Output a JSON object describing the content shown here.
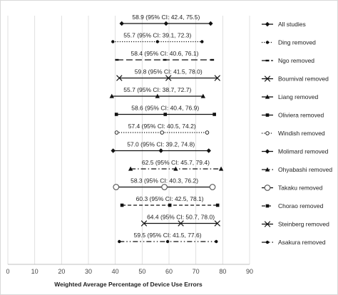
{
  "chart_data": {
    "type": "forest",
    "xlabel": "Weighted Average Percentage of Device Use Errors",
    "xlim": [
      0,
      90
    ],
    "xticks": [
      0,
      10,
      20,
      30,
      40,
      50,
      60,
      70,
      80,
      90
    ],
    "grid": true,
    "legend_position": "right",
    "rows": [
      {
        "name": "All studies",
        "estimate": 58.9,
        "lower": 42.4,
        "upper": 75.5,
        "label": "58.9 (95% CI: 42.4, 75.5)",
        "line": "solid",
        "marker": "diamond"
      },
      {
        "name": "Ding removed",
        "estimate": 55.7,
        "lower": 39.1,
        "upper": 72.3,
        "label": "55.7 (95% CI: 39.1, 72.3)",
        "line": "dotted",
        "marker": "circle"
      },
      {
        "name": "Ngo removed",
        "estimate": 58.4,
        "lower": 40.6,
        "upper": 76.1,
        "label": "58.4 (95% CI: 40.6, 76.1)",
        "line": "longdash",
        "marker": "dash"
      },
      {
        "name": "Bournival removed",
        "estimate": 59.8,
        "lower": 41.5,
        "upper": 78.0,
        "label": "59.8 (95% CI: 41.5, 78.0)",
        "line": "solid",
        "marker": "x"
      },
      {
        "name": "Liang removed",
        "estimate": 55.7,
        "lower": 38.7,
        "upper": 72.7,
        "label": "55.7 (95% CI: 38.7, 72.7)",
        "line": "solid",
        "marker": "triangle"
      },
      {
        "name": "Oliviera removed",
        "estimate": 58.6,
        "lower": 40.4,
        "upper": 76.9,
        "label": "58.6 (95% CI: 40.4, 76.9)",
        "line": "solid",
        "marker": "square"
      },
      {
        "name": "Windish removed",
        "estimate": 57.4,
        "lower": 40.5,
        "upper": 74.2,
        "label": "57.4 (95% CI: 40.5, 74.2)",
        "line": "dotted",
        "marker": "open-circle"
      },
      {
        "name": "Molimard removed",
        "estimate": 57.0,
        "lower": 39.2,
        "upper": 74.8,
        "label": "57.0 (95% CI: 39.2, 74.8)",
        "line": "solid",
        "marker": "diamond"
      },
      {
        "name": "Ohyabashi removed",
        "estimate": 62.5,
        "lower": 45.7,
        "upper": 79.4,
        "label": "62.5 (95% CI: 45.7, 79.4)",
        "line": "dashdot",
        "marker": "triangle"
      },
      {
        "name": "Takaku removed",
        "estimate": 58.3,
        "lower": 40.3,
        "upper": 76.2,
        "label": "58.3 (95% CI: 40.3, 76.2)",
        "line": "solid",
        "marker": "big-open-circle"
      },
      {
        "name": "Chorao removed",
        "estimate": 60.3,
        "lower": 42.5,
        "upper": 78.1,
        "label": "60.3 (95% CI: 42.5, 78.1)",
        "line": "dashed",
        "marker": "square"
      },
      {
        "name": "Steinberg removed",
        "estimate": 64.4,
        "lower": 50.7,
        "upper": 78.0,
        "label": "64.4 (95% CI: 50.7, 78.0)",
        "line": "solid",
        "marker": "x"
      },
      {
        "name": "Asakura removed",
        "estimate": 59.5,
        "lower": 41.5,
        "upper": 77.6,
        "label": "59.5 (95% CI: 41.5, 77.6)",
        "line": "dashdotdot",
        "marker": "circle"
      }
    ]
  }
}
